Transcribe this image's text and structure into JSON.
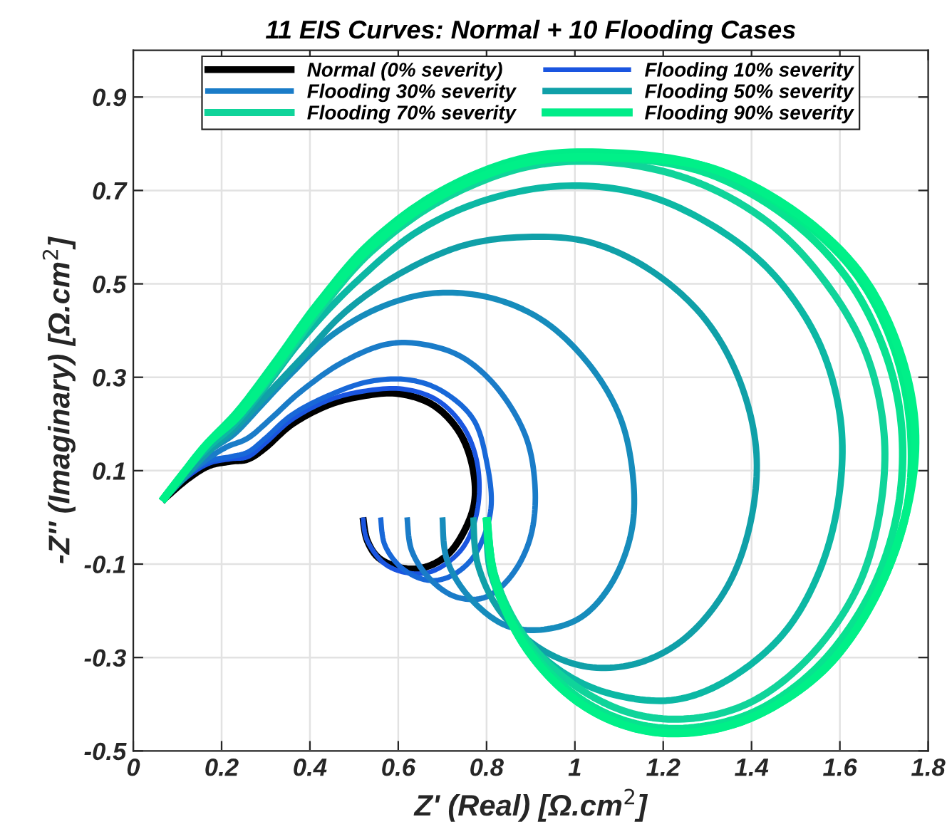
{
  "chart_data": {
    "type": "line",
    "title": "11 EIS Curves: Normal + 10 Flooding Cases",
    "xlabel": "Z' (Real) [Ω.cm$^{2}$]",
    "ylabel": "-Z'' (Imaginary) [Ω.cm$^{2}$]",
    "xlim": [
      0,
      1.8
    ],
    "xticks": [
      0,
      0.2,
      0.4,
      0.6,
      0.8,
      1,
      1.2,
      1.4,
      1.6,
      1.8
    ],
    "ylim": [
      -0.5,
      1.0
    ],
    "yticks": [
      -0.5,
      -0.3,
      -0.1,
      0.1,
      0.3,
      0.5,
      0.7,
      0.9
    ],
    "grid": true,
    "legend": "top",
    "marker": "none",
    "line_style": "solid",
    "series": [
      {
        "name": "Normal (0% severity)",
        "color": "#000000",
        "x": [
          0.52,
          0.53,
          0.56,
          0.62,
          0.68,
          0.73,
          0.77,
          0.77,
          0.74,
          0.68,
          0.6,
          0.52,
          0.44,
          0.36,
          0.3,
          0.26,
          0.22,
          0.17,
          0.12,
          0.065
        ],
        "values": [
          0,
          -0.05,
          -0.09,
          -0.11,
          -0.1,
          -0.06,
          0.02,
          0.1,
          0.18,
          0.24,
          0.265,
          0.26,
          0.24,
          0.2,
          0.15,
          0.125,
          0.12,
          0.11,
          0.08,
          0.035
        ]
      },
      {
        "name": "Flooding 10% severity",
        "color": "#1a55e0",
        "x": [
          0.52,
          0.53,
          0.57,
          0.63,
          0.69,
          0.75,
          0.78,
          0.78,
          0.75,
          0.69,
          0.61,
          0.52,
          0.44,
          0.36,
          0.3,
          0.26,
          0.22,
          0.17,
          0.12,
          0.065
        ],
        "values": [
          0,
          -0.05,
          -0.1,
          -0.12,
          -0.11,
          -0.06,
          0.02,
          0.11,
          0.19,
          0.25,
          0.275,
          0.27,
          0.25,
          0.21,
          0.16,
          0.13,
          0.125,
          0.115,
          0.085,
          0.035
        ]
      },
      {
        "color": "#1868d8",
        "x": [
          0.56,
          0.57,
          0.61,
          0.67,
          0.73,
          0.78,
          0.81,
          0.8,
          0.77,
          0.7,
          0.62,
          0.53,
          0.44,
          0.36,
          0.3,
          0.26,
          0.22,
          0.17,
          0.12,
          0.065
        ],
        "values": [
          0,
          -0.06,
          -0.11,
          -0.135,
          -0.12,
          -0.07,
          0.02,
          0.12,
          0.21,
          0.27,
          0.295,
          0.29,
          0.26,
          0.22,
          0.17,
          0.14,
          0.13,
          0.12,
          0.09,
          0.035
        ]
      },
      {
        "name": "Flooding 30% severity",
        "color": "#1a7cc8",
        "x": [
          0.62,
          0.63,
          0.67,
          0.73,
          0.8,
          0.86,
          0.9,
          0.91,
          0.89,
          0.83,
          0.75,
          0.66,
          0.57,
          0.47,
          0.38,
          0.31,
          0.26,
          0.21,
          0.16,
          0.11,
          0.065
        ],
        "values": [
          0,
          -0.07,
          -0.13,
          -0.17,
          -0.17,
          -0.12,
          -0.04,
          0.06,
          0.17,
          0.27,
          0.34,
          0.37,
          0.37,
          0.33,
          0.27,
          0.21,
          0.17,
          0.15,
          0.12,
          0.08,
          0.035
        ]
      },
      {
        "color": "#168cbc",
        "x": [
          0.7,
          0.71,
          0.76,
          0.84,
          0.93,
          1.02,
          1.09,
          1.13,
          1.13,
          1.1,
          1.03,
          0.93,
          0.81,
          0.68,
          0.56,
          0.45,
          0.36,
          0.29,
          0.23,
          0.17,
          0.11,
          0.065
        ],
        "values": [
          0,
          -0.09,
          -0.17,
          -0.23,
          -0.24,
          -0.21,
          -0.13,
          -0.02,
          0.1,
          0.22,
          0.33,
          0.42,
          0.47,
          0.48,
          0.45,
          0.39,
          0.31,
          0.24,
          0.18,
          0.14,
          0.08,
          0.035
        ]
      },
      {
        "name": "Flooding 50% severity",
        "color": "#10a0a8",
        "x": [
          0.77,
          0.78,
          0.83,
          0.92,
          1.03,
          1.15,
          1.26,
          1.35,
          1.4,
          1.41,
          1.37,
          1.29,
          1.17,
          1.03,
          0.88,
          0.74,
          0.6,
          0.48,
          0.38,
          0.3,
          0.23,
          0.17,
          0.11,
          0.065
        ],
        "values": [
          0,
          -0.1,
          -0.2,
          -0.28,
          -0.32,
          -0.31,
          -0.25,
          -0.14,
          0.0,
          0.15,
          0.3,
          0.43,
          0.53,
          0.59,
          0.6,
          0.58,
          0.52,
          0.44,
          0.34,
          0.26,
          0.19,
          0.14,
          0.08,
          0.035
        ]
      },
      {
        "color": "#0cb8a4",
        "x": [
          0.8,
          0.81,
          0.87,
          0.97,
          1.09,
          1.23,
          1.36,
          1.48,
          1.56,
          1.6,
          1.6,
          1.55,
          1.45,
          1.32,
          1.16,
          0.98,
          0.8,
          0.64,
          0.5,
          0.39,
          0.3,
          0.23,
          0.17,
          0.11,
          0.065
        ],
        "values": [
          0,
          -0.12,
          -0.24,
          -0.33,
          -0.38,
          -0.39,
          -0.34,
          -0.24,
          -0.1,
          0.06,
          0.22,
          0.38,
          0.52,
          0.62,
          0.69,
          0.71,
          0.68,
          0.61,
          0.5,
          0.39,
          0.28,
          0.2,
          0.15,
          0.09,
          0.035
        ]
      },
      {
        "name": "Flooding 70% severity",
        "color": "#10d49a",
        "x": [
          0.8,
          0.82,
          0.89,
          1.0,
          1.13,
          1.27,
          1.41,
          1.54,
          1.64,
          1.69,
          1.7,
          1.66,
          1.57,
          1.44,
          1.27,
          1.08,
          0.89,
          0.7,
          0.54,
          0.42,
          0.32,
          0.24,
          0.17,
          0.11,
          0.065
        ],
        "values": [
          0,
          -0.13,
          -0.26,
          -0.36,
          -0.42,
          -0.43,
          -0.39,
          -0.29,
          -0.15,
          0.01,
          0.18,
          0.35,
          0.5,
          0.63,
          0.72,
          0.76,
          0.75,
          0.68,
          0.57,
          0.44,
          0.31,
          0.22,
          0.16,
          0.09,
          0.035
        ]
      },
      {
        "color": "#08e290",
        "x": [
          0.8,
          0.82,
          0.89,
          1.0,
          1.13,
          1.27,
          1.42,
          1.56,
          1.67,
          1.73,
          1.74,
          1.7,
          1.61,
          1.47,
          1.29,
          1.09,
          0.89,
          0.7,
          0.54,
          0.42,
          0.32,
          0.24,
          0.17,
          0.11,
          0.065
        ],
        "values": [
          0,
          -0.13,
          -0.27,
          -0.38,
          -0.44,
          -0.45,
          -0.41,
          -0.31,
          -0.16,
          0.01,
          0.19,
          0.36,
          0.52,
          0.65,
          0.74,
          0.77,
          0.76,
          0.69,
          0.58,
          0.45,
          0.32,
          0.22,
          0.16,
          0.09,
          0.035
        ]
      },
      {
        "name": "Flooding 90% severity",
        "color": "#00ec88",
        "x": [
          0.8,
          0.82,
          0.89,
          1.0,
          1.13,
          1.27,
          1.42,
          1.57,
          1.68,
          1.75,
          1.76,
          1.72,
          1.63,
          1.48,
          1.3,
          1.09,
          0.89,
          0.7,
          0.54,
          0.42,
          0.32,
          0.24,
          0.17,
          0.11,
          0.065
        ],
        "values": [
          0,
          -0.14,
          -0.28,
          -0.39,
          -0.45,
          -0.46,
          -0.42,
          -0.32,
          -0.17,
          0.01,
          0.19,
          0.37,
          0.53,
          0.66,
          0.75,
          0.78,
          0.77,
          0.7,
          0.59,
          0.46,
          0.33,
          0.23,
          0.16,
          0.09,
          0.035
        ]
      },
      {
        "color": "#00f088",
        "x": [
          0.8,
          0.82,
          0.89,
          1.0,
          1.13,
          1.27,
          1.42,
          1.57,
          1.68,
          1.75,
          1.77,
          1.73,
          1.64,
          1.49,
          1.3,
          1.09,
          0.89,
          0.7,
          0.54,
          0.42,
          0.32,
          0.24,
          0.17,
          0.11,
          0.065
        ],
        "values": [
          0,
          -0.14,
          -0.28,
          -0.39,
          -0.45,
          -0.46,
          -0.42,
          -0.32,
          -0.17,
          0.01,
          0.19,
          0.37,
          0.53,
          0.66,
          0.75,
          0.77,
          0.76,
          0.69,
          0.58,
          0.45,
          0.32,
          0.22,
          0.16,
          0.09,
          0.035
        ]
      }
    ]
  }
}
